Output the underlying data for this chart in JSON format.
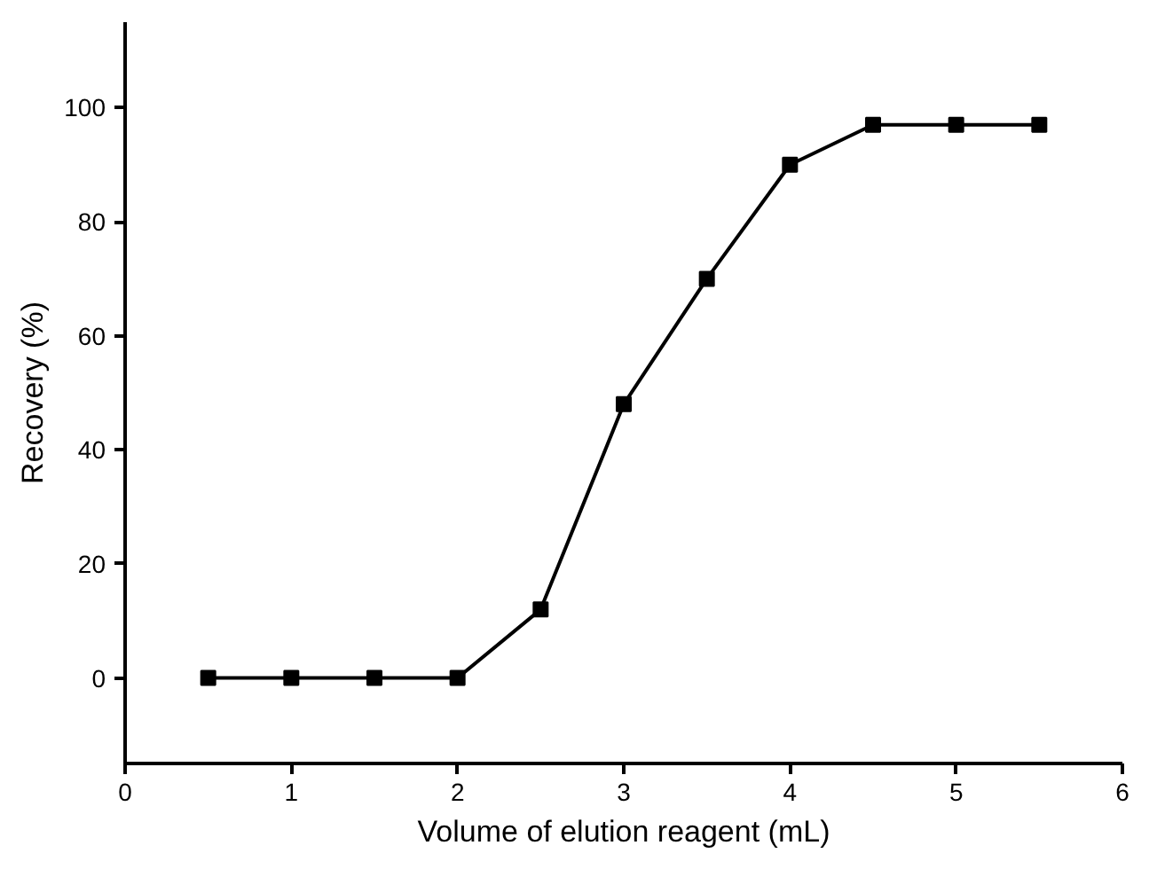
{
  "chart_data": {
    "type": "line",
    "xlabel": "Volume of elution reagent (mL)",
    "ylabel": "Recovery (%)",
    "x": [
      0.5,
      1,
      1.5,
      2,
      2.5,
      3,
      3.5,
      4,
      4.5,
      5,
      5.5
    ],
    "series": [
      {
        "color": "#000000",
        "values": [
          0,
          0,
          0,
          0,
          12,
          48,
          70,
          90,
          97,
          97,
          97
        ]
      }
    ],
    "xlim": [
      0,
      6
    ],
    "xticks": [
      0,
      1,
      2,
      3,
      4,
      5,
      6
    ],
    "ylim": [
      -15,
      115
    ],
    "yticks": [
      0,
      20,
      40,
      60,
      80,
      100
    ],
    "marker": "square",
    "line_style": "solid"
  }
}
